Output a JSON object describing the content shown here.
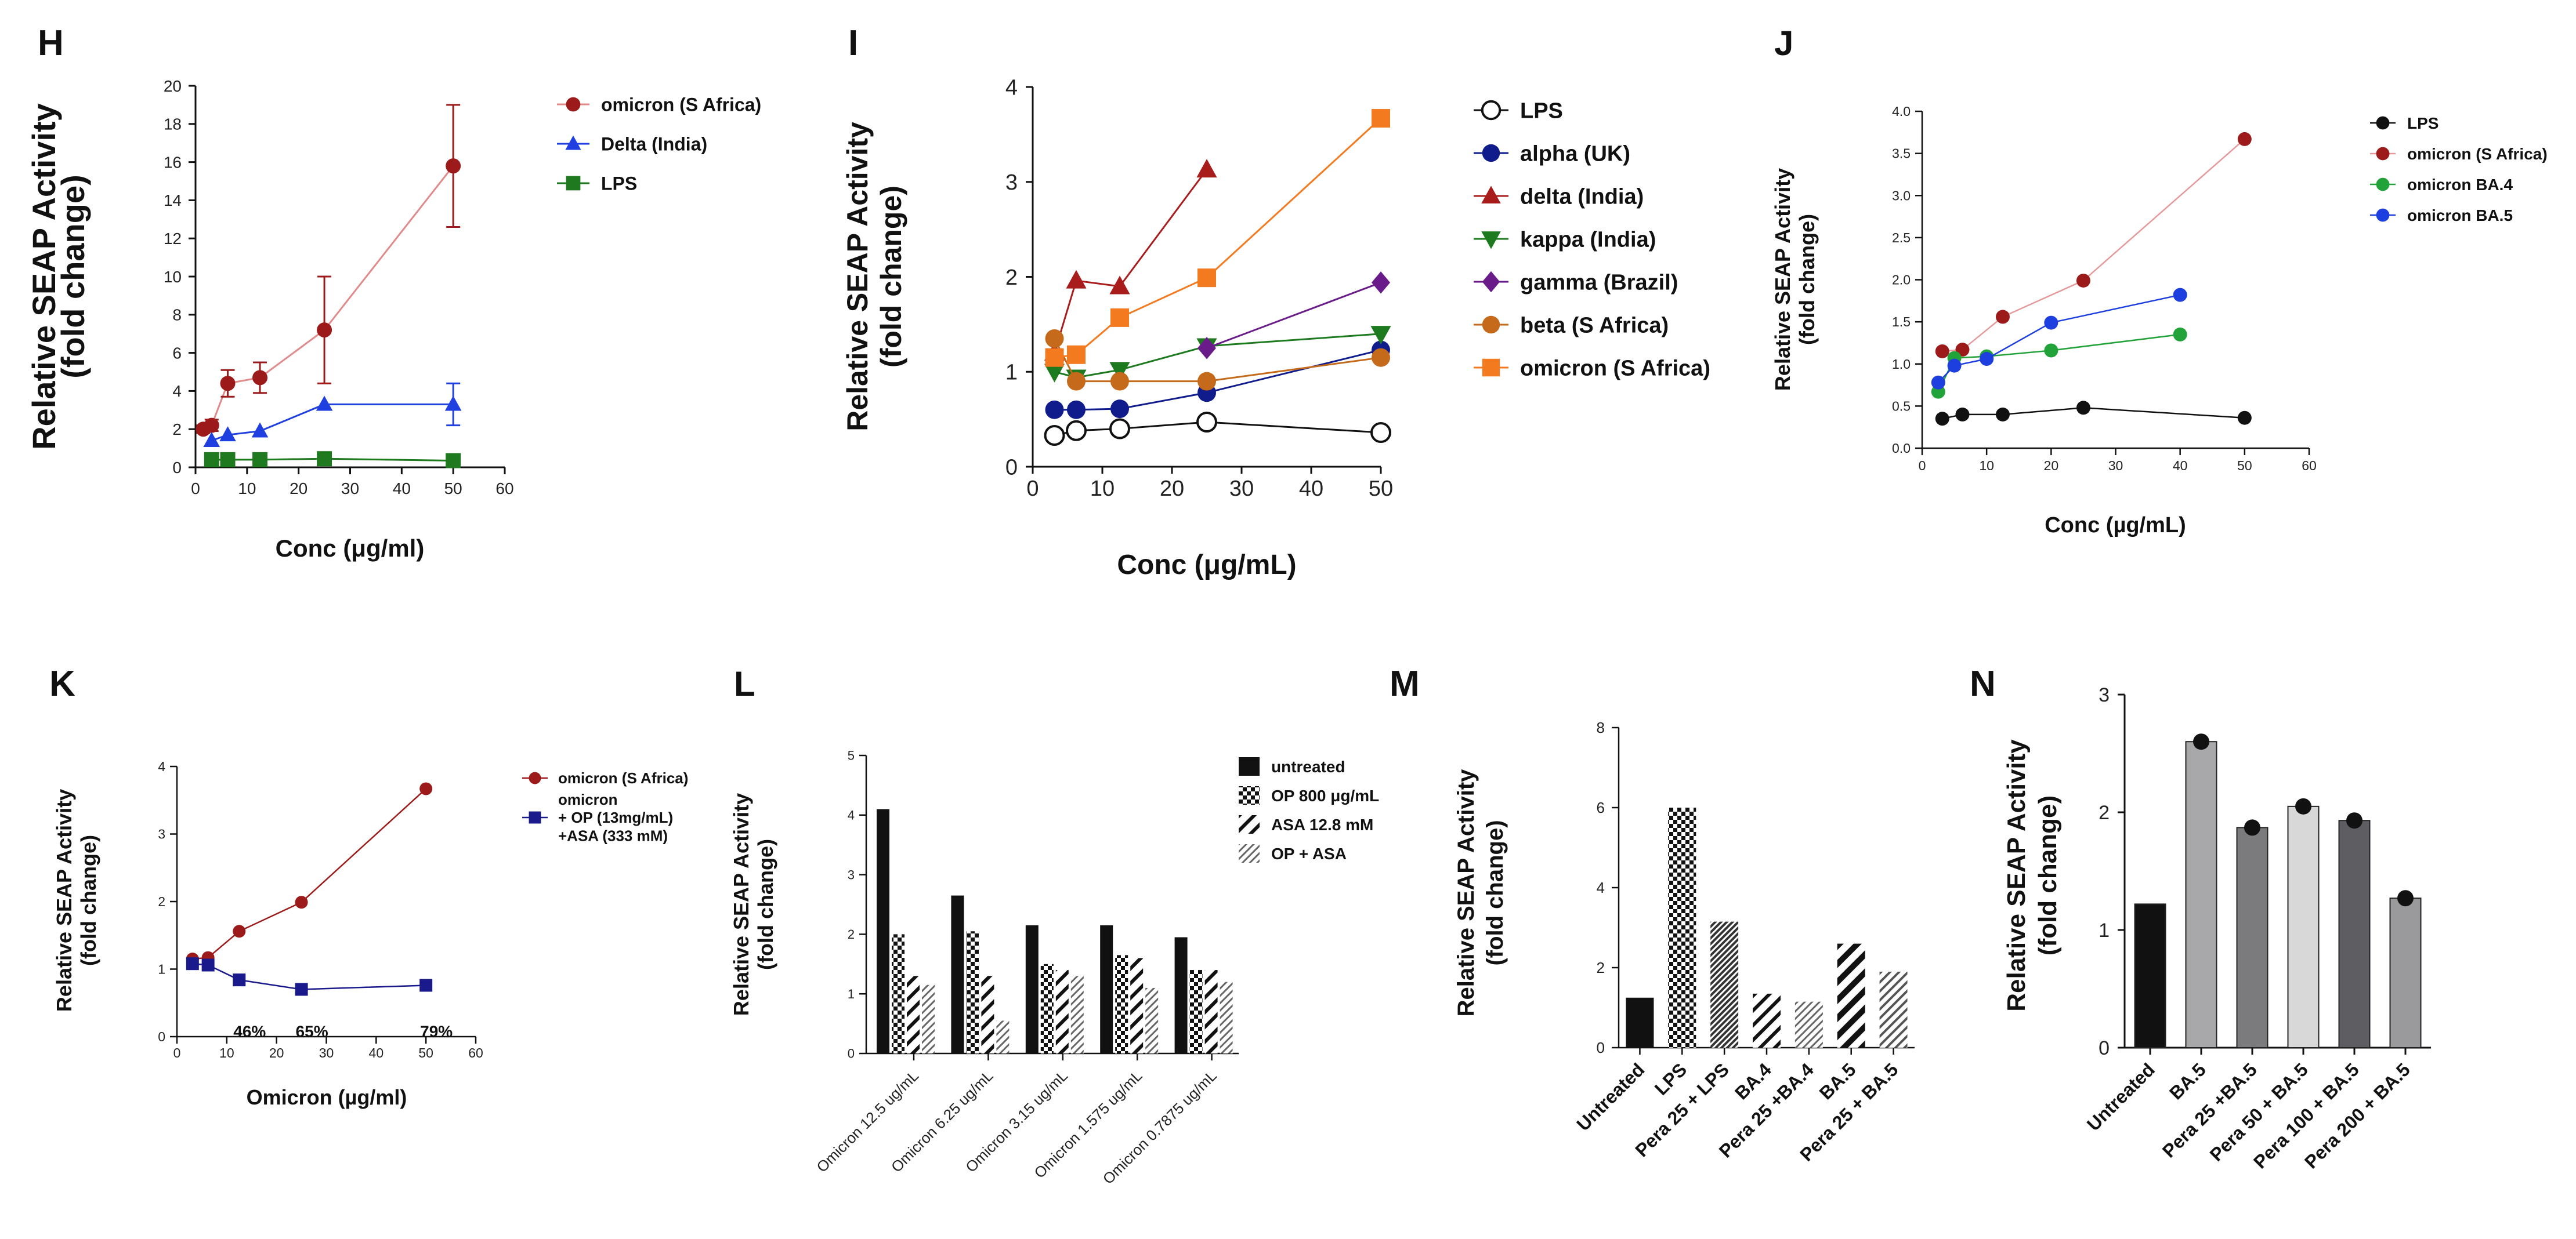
{
  "colors": {
    "red": "#9c1a1a",
    "blue": "#1f3fe0",
    "green": "#1f7a1f",
    "navy": "#101c8c",
    "dkred": "#a81c1c",
    "kgreen": "#1e7a1e",
    "purple": "#6a1b8a",
    "brown": "#c46a1a",
    "orange": "#f47a20",
    "black": "#111111",
    "jgreen": "#22a33a",
    "jblue": "#1e3fe0",
    "kblue": "#1a1a8c",
    "grey1": "#a8a8ab",
    "grey2": "#7b7b7e",
    "grey3": "#d8d8d8",
    "grey4": "#5e5e62",
    "grey5": "#9a9a9d"
  },
  "chart_data": [
    {
      "id": "H",
      "panel_label": "H",
      "type": "line",
      "xlabel": "Conc (μg/ml)",
      "ylabel": [
        "Relative SEAP Activity",
        "(fold change)"
      ],
      "xlim": [
        0,
        60
      ],
      "ylim": [
        0,
        20
      ],
      "xticks": [
        "0",
        "10",
        "20",
        "30",
        "40",
        "50",
        "60"
      ],
      "yticks": [
        "0",
        "2",
        "4",
        "6",
        "8",
        "10",
        "12",
        "14",
        "16",
        "18",
        "20"
      ],
      "series": [
        {
          "name": "omicron (S Africa)",
          "color": "red",
          "marker": "circle",
          "x": [
            1.5,
            3.125,
            6.25,
            12.5,
            25,
            50
          ],
          "y": [
            2.0,
            2.2,
            4.4,
            4.7,
            7.2,
            15.8
          ],
          "err": [
            0.2,
            0.3,
            0.7,
            0.8,
            2.8,
            3.2
          ]
        },
        {
          "name": "Delta (India)",
          "color": "blue",
          "marker": "triangle",
          "x": [
            3.125,
            6.25,
            12.5,
            25,
            50
          ],
          "y": [
            1.4,
            1.7,
            1.9,
            3.3,
            3.3
          ],
          "err": [
            0,
            0,
            0,
            0,
            1.1
          ]
        },
        {
          "name": "LPS",
          "color": "green",
          "marker": "square",
          "x": [
            3.125,
            6.25,
            12.5,
            25,
            50
          ],
          "y": [
            0.4,
            0.4,
            0.4,
            0.45,
            0.35
          ],
          "err": [
            0,
            0,
            0,
            0,
            0
          ]
        }
      ]
    },
    {
      "id": "I",
      "panel_label": "I",
      "type": "line",
      "xlabel": "Conc (μg/mL)",
      "ylabel": [
        "Relative SEAP Activity",
        "(fold change)"
      ],
      "xlim": [
        0,
        50
      ],
      "ylim": [
        0,
        4
      ],
      "xticks": [
        "0",
        "10",
        "20",
        "30",
        "40",
        "50"
      ],
      "yticks": [
        "0",
        "1",
        "2",
        "3",
        "4"
      ],
      "series": [
        {
          "name": "LPS",
          "color": "black",
          "marker": "open-circle",
          "x": [
            3.125,
            6.25,
            12.5,
            25,
            50
          ],
          "y": [
            0.33,
            0.38,
            0.4,
            0.47,
            0.36
          ]
        },
        {
          "name": "alpha (UK)",
          "color": "navy",
          "marker": "circle",
          "x": [
            3.125,
            6.25,
            12.5,
            25,
            50
          ],
          "y": [
            0.6,
            0.6,
            0.61,
            0.78,
            1.23
          ]
        },
        {
          "name": "delta (India)",
          "color": "dkred",
          "marker": "triangle",
          "x": [
            3.125,
            6.25,
            12.5,
            25
          ],
          "y": [
            1.2,
            1.96,
            1.9,
            3.13
          ]
        },
        {
          "name": "kappa (India)",
          "color": "kgreen",
          "marker": "triangle-down",
          "x": [
            3.125,
            6.25,
            12.5,
            25,
            50
          ],
          "y": [
            1.0,
            0.94,
            1.02,
            1.27,
            1.4
          ]
        },
        {
          "name": "gamma (Brazil)",
          "color": "purple",
          "marker": "diamond",
          "x": [
            25,
            50
          ],
          "y": [
            1.25,
            1.94
          ]
        },
        {
          "name": "beta (S Africa)",
          "color": "brown",
          "marker": "circle",
          "x": [
            3.125,
            6.25,
            12.5,
            25,
            50
          ],
          "y": [
            1.35,
            0.9,
            0.9,
            0.9,
            1.15
          ]
        },
        {
          "name": "omicron (S Africa)",
          "color": "orange",
          "marker": "square",
          "x": [
            3.125,
            6.25,
            12.5,
            25,
            50
          ],
          "y": [
            1.15,
            1.18,
            1.57,
            1.99,
            3.67
          ]
        }
      ]
    },
    {
      "id": "J",
      "panel_label": "J",
      "type": "line",
      "xlabel": "Conc (µg/mL)",
      "ylabel": [
        "Relative SEAP Activity",
        "(fold change)"
      ],
      "xlim": [
        0,
        60
      ],
      "ylim": [
        0,
        4
      ],
      "xticks": [
        "0",
        "10",
        "20",
        "30",
        "40",
        "50",
        "60"
      ],
      "yticks": [
        "0.0",
        "0.5",
        "1.0",
        "1.5",
        "2.0",
        "2.5",
        "3.0",
        "3.5",
        "4.0"
      ],
      "series": [
        {
          "name": "LPS",
          "color": "black",
          "marker": "circle",
          "x": [
            3.125,
            6.25,
            12.5,
            25,
            50
          ],
          "y": [
            0.35,
            0.4,
            0.4,
            0.48,
            0.36
          ]
        },
        {
          "name": "omicron (S Africa)",
          "color": "red",
          "marker": "circle",
          "x": [
            3.125,
            6.25,
            12.5,
            25,
            50
          ],
          "y": [
            1.15,
            1.17,
            1.56,
            1.99,
            3.67
          ]
        },
        {
          "name": "omicron BA.4",
          "color": "jgreen",
          "marker": "circle",
          "x": [
            2.5,
            5,
            10,
            20,
            40
          ],
          "y": [
            0.67,
            1.07,
            1.09,
            1.16,
            1.35
          ]
        },
        {
          "name": "omicron BA.5",
          "color": "jblue",
          "marker": "circle",
          "x": [
            2.5,
            5,
            10,
            20,
            40
          ],
          "y": [
            0.78,
            0.98,
            1.06,
            1.49,
            1.82
          ]
        }
      ]
    },
    {
      "id": "K",
      "panel_label": "K",
      "type": "line",
      "xlabel": "Omicron (µg/ml)",
      "ylabel": [
        "Relative SEAP Activity",
        "(fold change)"
      ],
      "xlim": [
        0,
        60
      ],
      "ylim": [
        0,
        4
      ],
      "xticks": [
        "0",
        "10",
        "20",
        "30",
        "40",
        "50",
        "60"
      ],
      "yticks": [
        "0",
        "1",
        "2",
        "3",
        "4"
      ],
      "series": [
        {
          "name": "omicron (S Africa)",
          "color": "red",
          "marker": "circle",
          "x": [
            3.125,
            6.25,
            12.5,
            25,
            50
          ],
          "y": [
            1.15,
            1.17,
            1.56,
            1.99,
            3.67
          ]
        },
        {
          "name": "omicron + OP (13mg/mL) +ASA (333 mM)",
          "color": "kblue",
          "marker": "square",
          "x": [
            3.125,
            6.25,
            12.5,
            25,
            50
          ],
          "y": [
            1.08,
            1.06,
            0.84,
            0.7,
            0.76
          ]
        }
      ],
      "legend_lines": [
        [
          "omicron (S Africa)"
        ],
        [
          "omicron",
          "+ OP (13mg/mL)",
          "+ASA (333 mM)"
        ]
      ],
      "annotations": [
        {
          "text": "46%",
          "x": 12.5,
          "y": 0.2
        },
        {
          "text": "65%",
          "x": 25,
          "y": 0.2
        },
        {
          "text": "79%",
          "x": 50,
          "y": 0.2
        }
      ]
    },
    {
      "id": "L",
      "panel_label": "L",
      "type": "bar",
      "ylabel": [
        "Relative SEAP Activity",
        "(fold change)"
      ],
      "ylim": [
        0,
        5
      ],
      "yticks": [
        "0",
        "1",
        "2",
        "3",
        "4",
        "5"
      ],
      "categories": [
        "Omicron 12.5 ug/mL",
        "Omicron 6.25 ug/mL",
        "Omicron 3.15 ug/mL",
        "Omicron 1.575 ug/mL",
        "Omicron 0.7875 ug/mL"
      ],
      "series": [
        {
          "name": "untreated",
          "pattern": "solid",
          "values": [
            4.1,
            2.65,
            2.15,
            2.15,
            1.95
          ]
        },
        {
          "name": "OP 800 μg/mL",
          "pattern": "check",
          "values": [
            2.0,
            2.05,
            1.5,
            1.65,
            1.4
          ]
        },
        {
          "name": "ASA 12.8 mM",
          "pattern": "diag",
          "values": [
            1.3,
            1.3,
            1.4,
            1.6,
            1.4
          ]
        },
        {
          "name": "OP + ASA",
          "pattern": "fine",
          "values": [
            1.15,
            0.55,
            1.3,
            1.1,
            1.2
          ]
        }
      ]
    },
    {
      "id": "M",
      "panel_label": "M",
      "type": "bar",
      "ylabel": [
        "Relative SEAP Activity",
        "(fold change)"
      ],
      "ylim": [
        0,
        8
      ],
      "yticks": [
        "0",
        "2",
        "4",
        "6",
        "8"
      ],
      "categories": [
        "Untreated",
        "LPS",
        "Pera 25 + LPS",
        "BA.4",
        "Pera 25 +BA.4",
        "BA.5",
        "Pera 25 + BA.5"
      ],
      "values": [
        1.25,
        6.0,
        3.15,
        1.35,
        1.15,
        2.6,
        1.9
      ],
      "patterns": [
        "solid",
        "check",
        "dense",
        "diag",
        "fine",
        "diag-bold",
        "fine-bold"
      ]
    },
    {
      "id": "N",
      "panel_label": "N",
      "type": "bar",
      "ylabel": [
        "Relative SEAP Activity",
        "(fold change)"
      ],
      "ylim": [
        0,
        3
      ],
      "yticks": [
        "0",
        "1",
        "2",
        "3"
      ],
      "categories": [
        "Untreated",
        "BA.5",
        "Pera 25 +BA.5",
        "Pera 50 + BA.5",
        "Pera 100 + BA.5",
        "Pera 200 + BA.5"
      ],
      "values": [
        1.22,
        2.6,
        1.87,
        2.05,
        1.93,
        1.27
      ],
      "fills": [
        "black",
        "grey1",
        "grey2",
        "grey3",
        "grey4",
        "grey5"
      ],
      "dots": [
        false,
        true,
        true,
        true,
        true,
        true
      ]
    }
  ]
}
